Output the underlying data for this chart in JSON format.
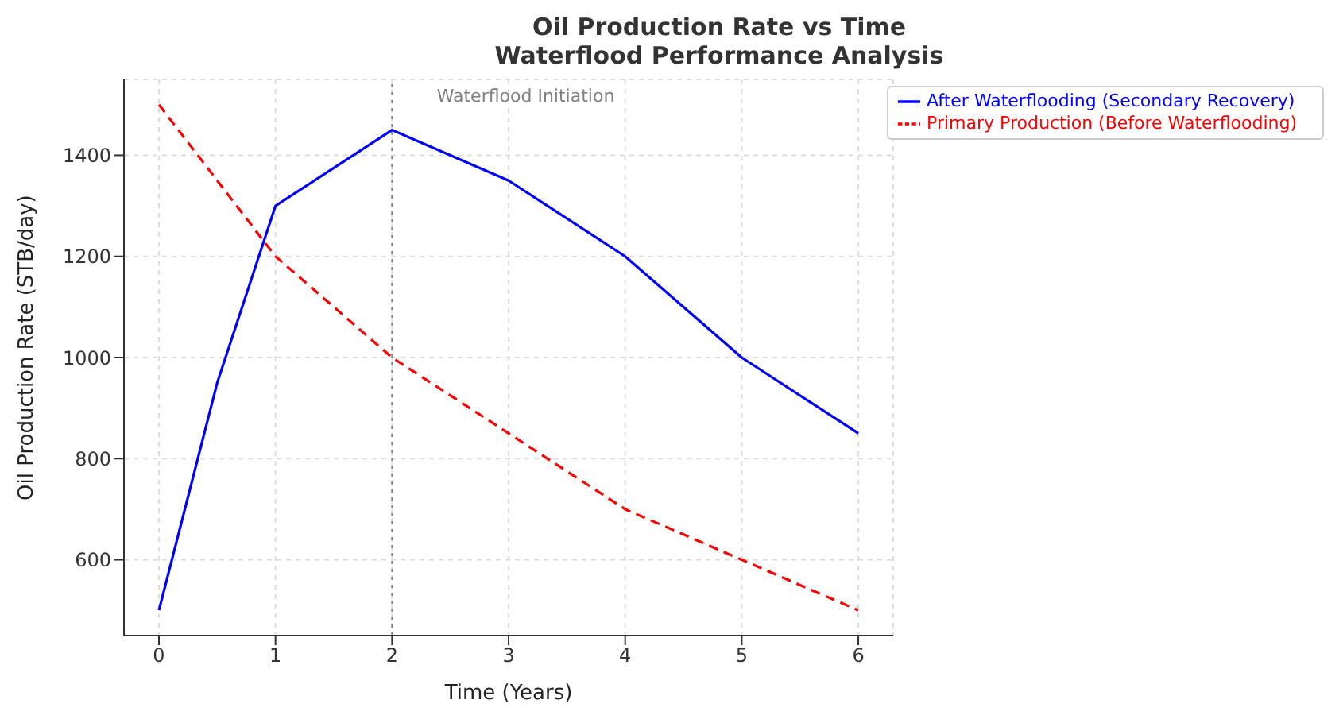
{
  "chart_data": {
    "type": "line",
    "title": "Oil Production Rate vs Time",
    "subtitle": "Waterflood Performance Analysis",
    "xlabel": "Time (Years)",
    "ylabel": "Oil Production Rate (STB/day)",
    "series": [
      {
        "name": "Primary Production (Before Waterflooding)",
        "color": "#ff0000",
        "line_style": "dashed",
        "x": [
          0,
          1,
          2,
          3,
          4,
          5,
          6
        ],
        "values": [
          1500,
          1200,
          1000,
          850,
          700,
          600,
          500
        ]
      },
      {
        "name": "After Waterflooding (Secondary Recovery)",
        "color": "#0000ff",
        "line_style": "solid",
        "x": [
          0,
          0.5,
          1,
          2,
          3,
          4,
          5,
          6
        ],
        "values": [
          500,
          950,
          1300,
          1450,
          1350,
          1200,
          1000,
          850
        ]
      }
    ],
    "xlim": [
      -0.3,
      6.3
    ],
    "xticks": [
      0,
      1,
      2,
      3,
      4,
      5,
      6
    ],
    "ylim": [
      450,
      1550
    ],
    "yticks": [
      600,
      800,
      1000,
      1200,
      1400
    ],
    "ref_lines": [
      {
        "axis": "x",
        "value": 2,
        "label": "Waterflood Initiation",
        "color": "#808080",
        "line_style": "dotted"
      }
    ],
    "grid": true,
    "legend": "top right",
    "marker": "none"
  }
}
